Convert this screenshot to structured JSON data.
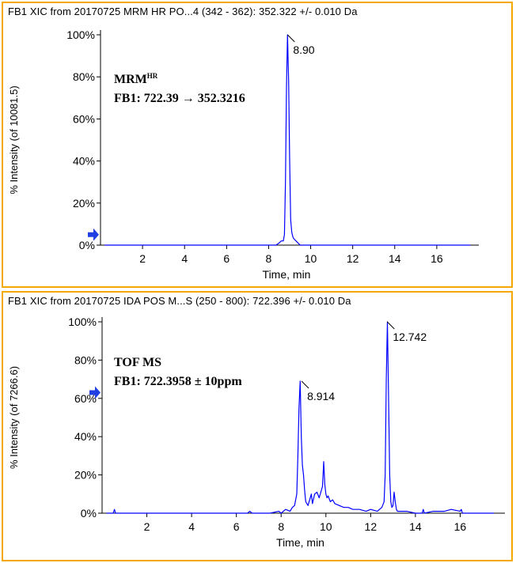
{
  "panels": [
    {
      "title": "FB1 XIC from 20170725   MRM  HR  PO...4 (342 - 362): 352.322 +/- 0.010 Da",
      "annotation": {
        "line1": "MRM",
        "line1_sup": "HR",
        "line2": "FB1: 722.39 → 352.3216"
      }
    },
    {
      "title": "FB1 XIC from 20170725   IDA  POS  M...S (250 - 800): 722.396 +/- 0.010 Da",
      "annotation": {
        "line1": "TOF MS",
        "line1_sup": "",
        "line2": "FB1: 722.3958 ± 10ppm"
      }
    }
  ],
  "colors": {
    "border": "#f5a800",
    "trace": "#0000ff",
    "marker": "#1f3fe0",
    "axis": "#000000"
  },
  "chart_data": [
    {
      "type": "line",
      "title": "FB1 XIC from 20170725   MRM  HR  PO...4 (342 - 362): 352.322 +/- 0.010 Da",
      "xlabel": "Time, min",
      "ylabel": "% Intensity (of 10081.5)",
      "xlim": [
        0,
        18
      ],
      "ylim": [
        0,
        100
      ],
      "x_ticks": [
        2,
        4,
        6,
        8,
        10,
        12,
        14,
        16
      ],
      "x_tick_labels": [
        "2",
        "4",
        "6",
        "8",
        "10",
        "12",
        "14",
        "16"
      ],
      "y_ticks": [
        0,
        20,
        40,
        60,
        80,
        100
      ],
      "y_tick_labels": [
        "0%",
        "20%",
        "40%",
        "60%",
        "80%",
        "100%"
      ],
      "peak_labels": [
        {
          "x": 8.9,
          "y": 100,
          "label": "8.90"
        }
      ],
      "y_marker": 5,
      "series": [
        {
          "name": "MRM HR XIC",
          "x": [
            0.2,
            8.35,
            8.5,
            8.6,
            8.7,
            8.75,
            8.8,
            8.85,
            8.9,
            8.95,
            9.0,
            9.05,
            9.1,
            9.15,
            9.2,
            9.3,
            9.4,
            9.5,
            17.6
          ],
          "y": [
            0,
            0,
            1,
            2,
            2,
            5,
            30,
            75,
            100,
            78,
            40,
            12,
            6,
            4,
            3,
            2,
            1,
            0,
            0
          ]
        }
      ]
    },
    {
      "type": "line",
      "title": "FB1 XIC from 20170725   IDA  POS  M...S (250 - 800): 722.396 +/- 0.010 Da",
      "xlabel": "Time, min",
      "ylabel": "% Intensity (of 7266.6)",
      "xlim": [
        0,
        18
      ],
      "ylim": [
        0,
        100
      ],
      "x_ticks": [
        2,
        4,
        6,
        8,
        10,
        12,
        14,
        16
      ],
      "x_tick_labels": [
        "2",
        "4",
        "6",
        "8",
        "10",
        "12",
        "14",
        "16"
      ],
      "y_ticks": [
        0,
        20,
        40,
        60,
        80,
        100
      ],
      "y_tick_labels": [
        "0%",
        "20%",
        "40%",
        "60%",
        "80%",
        "100%"
      ],
      "peak_labels": [
        {
          "x": 8.914,
          "y": 69,
          "label": "8.914"
        },
        {
          "x": 12.742,
          "y": 100,
          "label": "12.742"
        }
      ],
      "y_marker": 63,
      "series": [
        {
          "name": "TOF MS XIC",
          "x": [
            0.2,
            0.5,
            0.55,
            0.6,
            1.0,
            3.0,
            5.0,
            6.0,
            6.5,
            6.6,
            6.7,
            7.0,
            7.5,
            7.9,
            8.0,
            8.2,
            8.4,
            8.5,
            8.6,
            8.7,
            8.75,
            8.8,
            8.85,
            8.9,
            8.95,
            9.0,
            9.05,
            9.1,
            9.2,
            9.3,
            9.35,
            9.4,
            9.5,
            9.6,
            9.7,
            9.8,
            9.85,
            9.9,
            9.95,
            10.0,
            10.05,
            10.1,
            10.2,
            10.3,
            10.4,
            10.6,
            10.8,
            11.0,
            11.2,
            11.5,
            11.8,
            12.0,
            12.3,
            12.5,
            12.6,
            12.65,
            12.7,
            12.75,
            12.8,
            12.85,
            12.9,
            12.95,
            13.0,
            13.05,
            13.1,
            13.15,
            13.2,
            13.3,
            13.6,
            14.0,
            14.3,
            14.35,
            14.4,
            14.8,
            15.3,
            15.6,
            16.0,
            16.05,
            16.1,
            16.5,
            17.5
          ],
          "y": [
            0,
            0,
            2,
            0,
            0,
            0,
            0,
            0,
            0,
            1,
            0,
            0,
            0,
            1,
            0,
            2,
            1,
            3,
            4,
            10,
            30,
            55,
            69,
            40,
            25,
            20,
            12,
            6,
            4,
            8,
            10,
            5,
            10,
            11,
            8,
            12,
            14,
            27,
            15,
            10,
            8,
            9,
            6,
            7,
            5,
            4,
            3,
            3,
            2,
            2,
            1,
            2,
            1,
            3,
            6,
            20,
            70,
            100,
            60,
            20,
            6,
            3,
            4,
            11,
            6,
            2,
            1,
            1,
            1,
            0,
            0,
            2,
            0,
            1,
            1,
            2,
            1,
            2,
            0,
            0,
            0
          ]
        }
      ]
    }
  ]
}
